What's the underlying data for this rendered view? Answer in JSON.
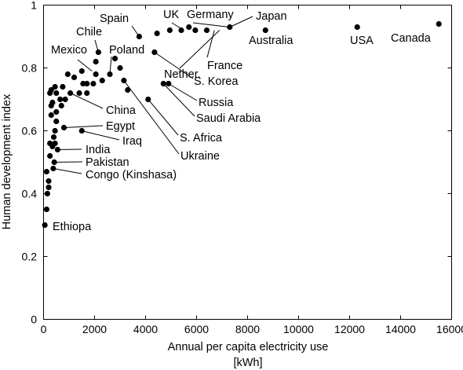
{
  "chart_data": {
    "type": "scatter",
    "xlabel": "Annual per capita electricity use",
    "xlabel_unit": "[kWh]",
    "ylabel": "Human development index",
    "xlim": [
      0,
      16000
    ],
    "ylim": [
      0,
      1
    ],
    "xticks": [
      0,
      2000,
      4000,
      6000,
      8000,
      10000,
      12000,
      14000,
      16000
    ],
    "yticks": [
      0,
      0.2,
      0.4,
      0.6,
      0.8,
      1
    ],
    "xtick_labels": [
      "0",
      "2000",
      "4000",
      "6000",
      "8000",
      "10000",
      "12000",
      "14000",
      "16000"
    ],
    "ytick_labels": [
      "0",
      "0.2",
      "0.4",
      "0.6",
      "0.8",
      "1"
    ],
    "grid": false,
    "marker_color": "#000000",
    "points": [
      {
        "x": 50,
        "y": 0.3
      },
      {
        "x": 120,
        "y": 0.35
      },
      {
        "x": 150,
        "y": 0.4
      },
      {
        "x": 200,
        "y": 0.42
      },
      {
        "x": 200,
        "y": 0.44
      },
      {
        "x": 120,
        "y": 0.47
      },
      {
        "x": 380,
        "y": 0.48
      },
      {
        "x": 420,
        "y": 0.5
      },
      {
        "x": 250,
        "y": 0.52
      },
      {
        "x": 550,
        "y": 0.54
      },
      {
        "x": 350,
        "y": 0.55
      },
      {
        "x": 250,
        "y": 0.56
      },
      {
        "x": 450,
        "y": 0.56
      },
      {
        "x": 400,
        "y": 0.58
      },
      {
        "x": 450,
        "y": 0.6
      },
      {
        "x": 1500,
        "y": 0.6
      },
      {
        "x": 800,
        "y": 0.61
      },
      {
        "x": 500,
        "y": 0.63
      },
      {
        "x": 300,
        "y": 0.65
      },
      {
        "x": 500,
        "y": 0.66
      },
      {
        "x": 300,
        "y": 0.68
      },
      {
        "x": 700,
        "y": 0.68
      },
      {
        "x": 350,
        "y": 0.69
      },
      {
        "x": 650,
        "y": 0.7
      },
      {
        "x": 850,
        "y": 0.7
      },
      {
        "x": 4100,
        "y": 0.7
      },
      {
        "x": 250,
        "y": 0.72
      },
      {
        "x": 500,
        "y": 0.72
      },
      {
        "x": 1400,
        "y": 0.72
      },
      {
        "x": 1050,
        "y": 0.72
      },
      {
        "x": 1700,
        "y": 0.72
      },
      {
        "x": 300,
        "y": 0.73
      },
      {
        "x": 3300,
        "y": 0.73
      },
      {
        "x": 450,
        "y": 0.74
      },
      {
        "x": 750,
        "y": 0.74
      },
      {
        "x": 1700,
        "y": 0.75
      },
      {
        "x": 1950,
        "y": 0.75
      },
      {
        "x": 1550,
        "y": 0.75
      },
      {
        "x": 4700,
        "y": 0.75
      },
      {
        "x": 4900,
        "y": 0.75
      },
      {
        "x": 3150,
        "y": 0.76
      },
      {
        "x": 2300,
        "y": 0.76
      },
      {
        "x": 1200,
        "y": 0.77
      },
      {
        "x": 2050,
        "y": 0.78
      },
      {
        "x": 950,
        "y": 0.78
      },
      {
        "x": 2600,
        "y": 0.78
      },
      {
        "x": 1500,
        "y": 0.79
      },
      {
        "x": 3000,
        "y": 0.8
      },
      {
        "x": 2050,
        "y": 0.82
      },
      {
        "x": 2800,
        "y": 0.83
      },
      {
        "x": 2150,
        "y": 0.85
      },
      {
        "x": 4350,
        "y": 0.85
      },
      {
        "x": 3750,
        "y": 0.9
      },
      {
        "x": 4450,
        "y": 0.91
      },
      {
        "x": 4950,
        "y": 0.92
      },
      {
        "x": 5400,
        "y": 0.92
      },
      {
        "x": 5700,
        "y": 0.93
      },
      {
        "x": 5950,
        "y": 0.92
      },
      {
        "x": 6400,
        "y": 0.92
      },
      {
        "x": 7300,
        "y": 0.93
      },
      {
        "x": 8700,
        "y": 0.92
      },
      {
        "x": 12300,
        "y": 0.93
      },
      {
        "x": 15500,
        "y": 0.94
      }
    ],
    "annotations": [
      {
        "label": "Spain",
        "point": [
          3750,
          0.9
        ]
      },
      {
        "label": "UK",
        "point": [
          5500,
          0.92
        ]
      },
      {
        "label": "Germany",
        "point": [
          7300,
          0.93
        ]
      },
      {
        "label": "Japan",
        "point": [
          7300,
          0.93
        ]
      },
      {
        "label": "Chile",
        "point": [
          2150,
          0.85
        ]
      },
      {
        "label": "Mexico",
        "point": [
          1900,
          0.79
        ]
      },
      {
        "label": "Poland",
        "point": [
          2600,
          0.78
        ]
      },
      {
        "label": "Nether.",
        "point": [
          6900,
          0.92
        ]
      },
      {
        "label": "Australia",
        "point": [
          8700,
          0.92
        ]
      },
      {
        "label": "USA",
        "point": [
          12300,
          0.93
        ]
      },
      {
        "label": "Canada",
        "point": [
          15500,
          0.94
        ]
      },
      {
        "label": "France",
        "point": [
          6700,
          0.92
        ]
      },
      {
        "label": "S. Korea",
        "point": [
          4350,
          0.85
        ]
      },
      {
        "label": "Russia",
        "point": [
          4900,
          0.75
        ]
      },
      {
        "label": "Saudi Arabia",
        "point": [
          4700,
          0.75
        ]
      },
      {
        "label": "China",
        "point": [
          1050,
          0.72
        ]
      },
      {
        "label": "Egypt",
        "point": [
          800,
          0.61
        ]
      },
      {
        "label": "S. Africa",
        "point": [
          4100,
          0.7
        ]
      },
      {
        "label": "Iraq",
        "point": [
          1500,
          0.6
        ]
      },
      {
        "label": "India",
        "point": [
          550,
          0.54
        ]
      },
      {
        "label": "Ukraine",
        "point": [
          3150,
          0.76
        ]
      },
      {
        "label": "Pakistan",
        "point": [
          420,
          0.5
        ]
      },
      {
        "label": "Congo (Kinshasa)",
        "point": [
          380,
          0.48
        ]
      },
      {
        "label": "Ethiopa",
        "point": [
          50,
          0.3
        ]
      }
    ]
  }
}
